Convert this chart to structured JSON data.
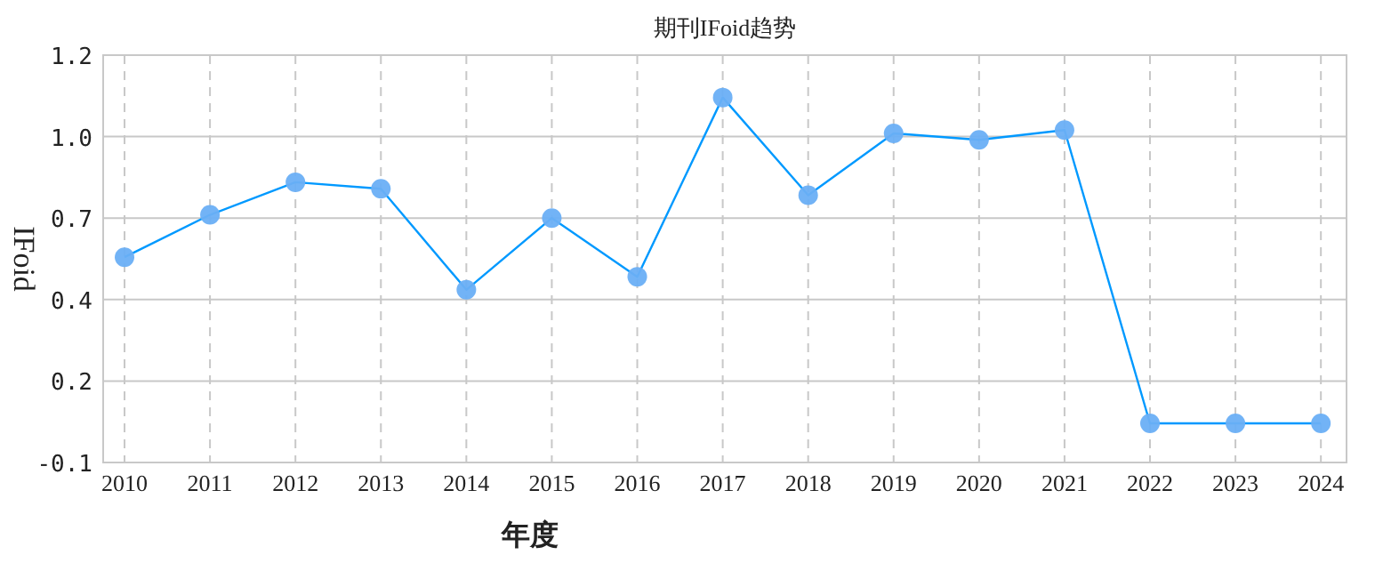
{
  "chart_data": {
    "type": "line",
    "title": "期刊IFoid趋势",
    "xlabel": "年度",
    "ylabel": "IFoid",
    "categories": [
      "2010",
      "2011",
      "2012",
      "2013",
      "2014",
      "2015",
      "2016",
      "2017",
      "2018",
      "2019",
      "2020",
      "2021",
      "2022",
      "2023",
      "2024"
    ],
    "series": [
      {
        "color": "#0099ff",
        "values": [
          0.58,
          0.71,
          0.81,
          0.79,
          0.48,
          0.7,
          0.52,
          1.07,
          0.77,
          0.96,
          0.94,
          0.97,
          0.07,
          0.07,
          0.07
        ]
      }
    ],
    "ylim": [
      -0.05,
      1.2
    ],
    "yticks": [
      {
        "value": -0.05,
        "label": "-0.1"
      },
      {
        "value": 0.2,
        "label": "0.2"
      },
      {
        "value": 0.45,
        "label": "0.4"
      },
      {
        "value": 0.7,
        "label": "0.7"
      },
      {
        "value": 0.95,
        "label": "1.0"
      },
      {
        "value": 1.2,
        "label": "1.2"
      }
    ],
    "grid": true,
    "marker": "circle",
    "line_style": "solid"
  }
}
